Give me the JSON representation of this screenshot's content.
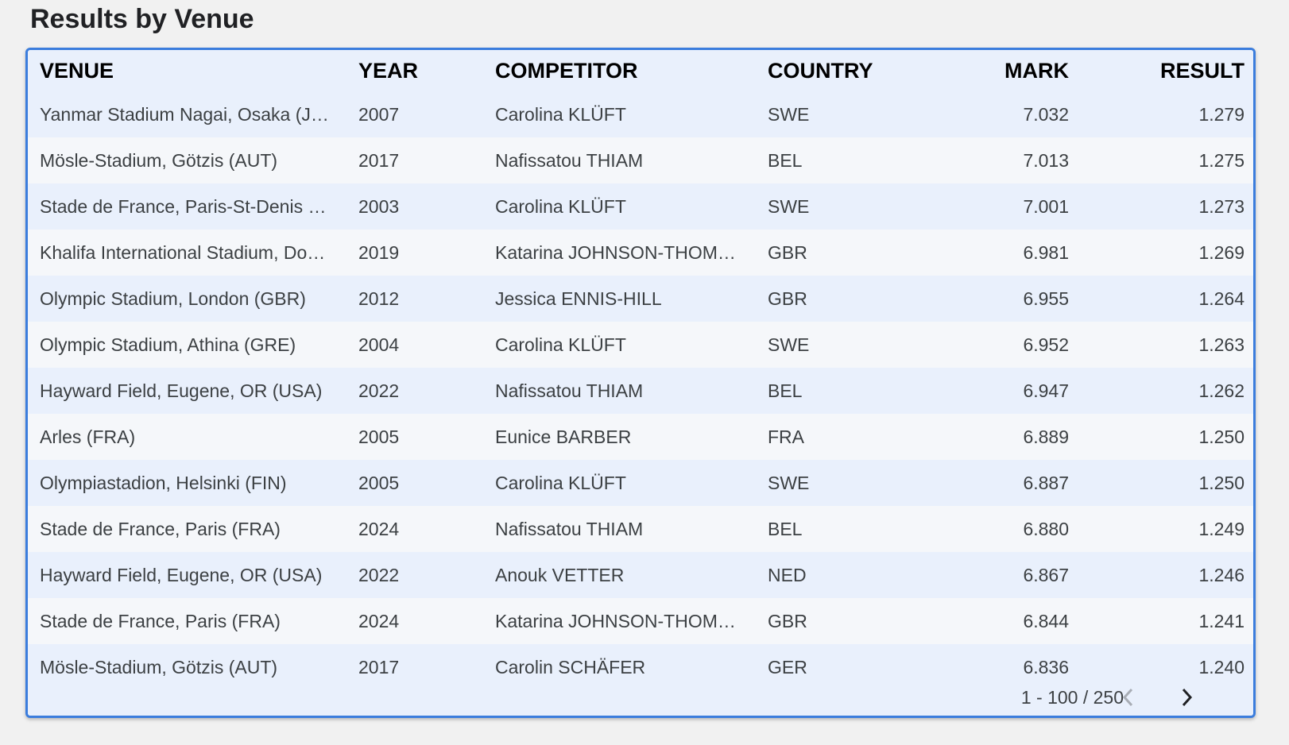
{
  "header": {
    "title": "Results by Venue"
  },
  "table": {
    "columns": [
      "VENUE",
      "YEAR",
      "COMPETITOR",
      "COUNTRY",
      "MARK",
      "RESULT"
    ],
    "rows": [
      [
        "Yanmar Stadium Nagai, Osaka (J…",
        "2007",
        "Carolina KLÜFT",
        "SWE",
        "7.032",
        "1.279"
      ],
      [
        "Mösle-Stadium, Götzis (AUT)",
        "2017",
        "Nafissatou THIAM",
        "BEL",
        "7.013",
        "1.275"
      ],
      [
        "Stade de France, Paris-St-Denis …",
        "2003",
        "Carolina KLÜFT",
        "SWE",
        "7.001",
        "1.273"
      ],
      [
        "Khalifa International Stadium, Do…",
        "2019",
        "Katarina JOHNSON-THOM…",
        "GBR",
        "6.981",
        "1.269"
      ],
      [
        "Olympic Stadium, London (GBR)",
        "2012",
        "Jessica ENNIS-HILL",
        "GBR",
        "6.955",
        "1.264"
      ],
      [
        "Olympic Stadium, Athina (GRE)",
        "2004",
        "Carolina KLÜFT",
        "SWE",
        "6.952",
        "1.263"
      ],
      [
        "Hayward Field, Eugene, OR (USA)",
        "2022",
        "Nafissatou THIAM",
        "BEL",
        "6.947",
        "1.262"
      ],
      [
        "Arles (FRA)",
        "2005",
        "Eunice BARBER",
        "FRA",
        "6.889",
        "1.250"
      ],
      [
        "Olympiastadion, Helsinki (FIN)",
        "2005",
        "Carolina KLÜFT",
        "SWE",
        "6.887",
        "1.250"
      ],
      [
        "Stade de France, Paris (FRA)",
        "2024",
        "Nafissatou THIAM",
        "BEL",
        "6.880",
        "1.249"
      ],
      [
        "Hayward Field, Eugene, OR (USA)",
        "2022",
        "Anouk VETTER",
        "NED",
        "6.867",
        "1.246"
      ],
      [
        "Stade de France, Paris (FRA)",
        "2024",
        "Katarina JOHNSON-THOM…",
        "GBR",
        "6.844",
        "1.241"
      ],
      [
        "Mösle-Stadium, Götzis (AUT)",
        "2017",
        "Carolin SCHÄFER",
        "GER",
        "6.836",
        "1.240"
      ]
    ],
    "pagination": "1 - 100 / 250"
  }
}
